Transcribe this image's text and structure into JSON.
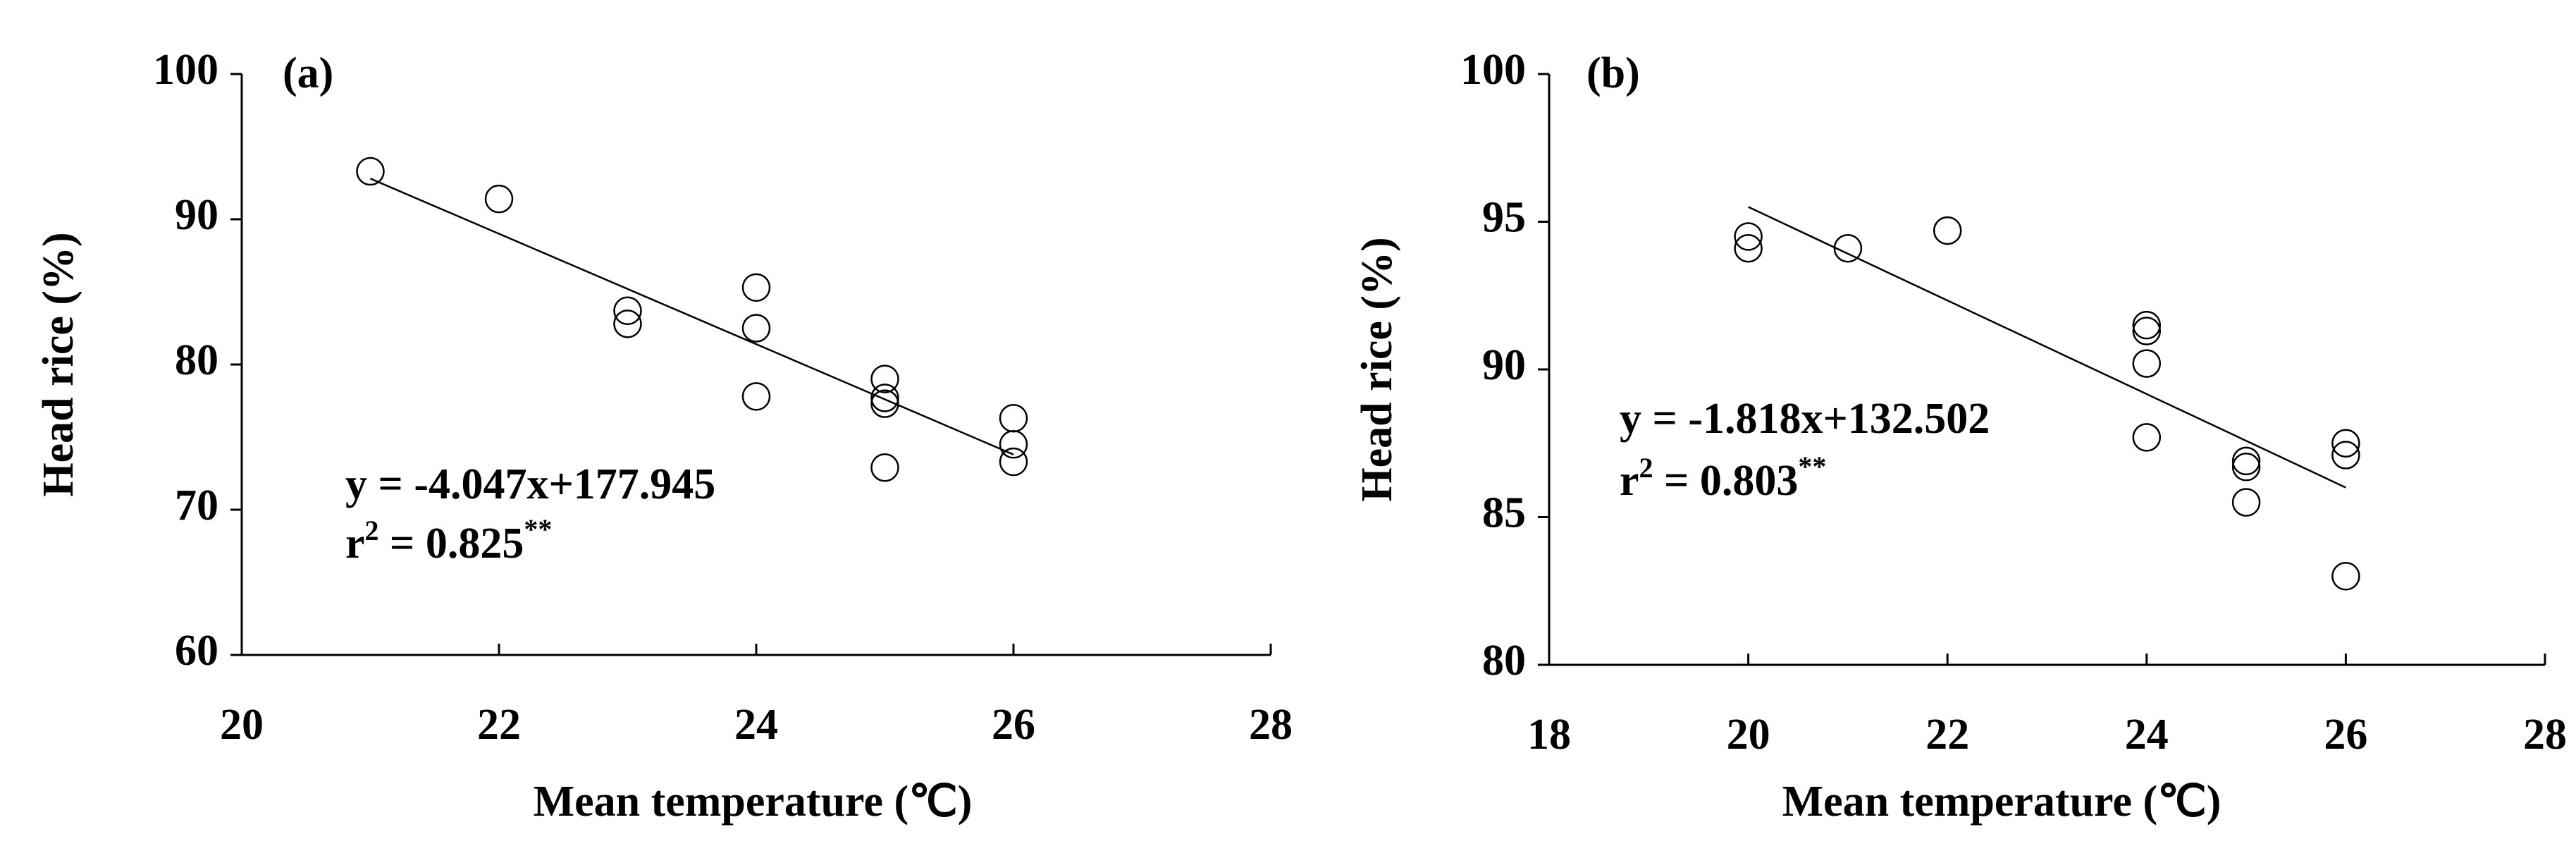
{
  "chart_data": [
    {
      "type": "scatter",
      "panel_label": "(a)",
      "xlabel": "Mean temperature (℃)",
      "ylabel": "Head rice (%)",
      "xlim": [
        20,
        28
      ],
      "ylim": [
        60,
        100
      ],
      "xticks": [
        20,
        22,
        24,
        26,
        28
      ],
      "yticks": [
        60,
        70,
        80,
        90,
        100
      ],
      "x": [
        21,
        22,
        23,
        23,
        24,
        24,
        24,
        25,
        25,
        25,
        25,
        26,
        26,
        26
      ],
      "values": [
        93.3,
        91.4,
        83.7,
        82.8,
        85.3,
        82.5,
        77.8,
        79.0,
        77.7,
        77.3,
        72.9,
        76.3,
        74.5,
        73.3
      ],
      "fit": {
        "x": [
          21,
          26
        ],
        "values": [
          92.8,
          73.8
        ]
      },
      "equation": "y = -4.047x+177.945",
      "r2": {
        "base": "r",
        "sup": "2",
        "rest": " = 0.825",
        "sig": "**"
      }
    },
    {
      "type": "scatter",
      "panel_label": "(b)",
      "xlabel": "Mean temperature (℃)",
      "ylabel": "Head rice (%)",
      "xlim": [
        18,
        28
      ],
      "ylim": [
        80,
        100
      ],
      "xticks": [
        18,
        20,
        22,
        24,
        26,
        28
      ],
      "yticks": [
        80,
        85,
        90,
        95,
        100
      ],
      "x": [
        20,
        20,
        21,
        22,
        24,
        24,
        24,
        24,
        25,
        25,
        25,
        26,
        26,
        26
      ],
      "values": [
        94.5,
        94.1,
        94.1,
        94.7,
        91.5,
        91.3,
        90.2,
        87.7,
        86.9,
        86.7,
        85.5,
        87.5,
        87.1,
        83.0
      ],
      "fit": {
        "x": [
          20,
          26
        ],
        "values": [
          95.5,
          86.0
        ]
      },
      "equation": "y = -1.818x+132.502",
      "r2": {
        "base": "r",
        "sup": "2",
        "rest": " = 0.803",
        "sig": "**"
      }
    }
  ]
}
